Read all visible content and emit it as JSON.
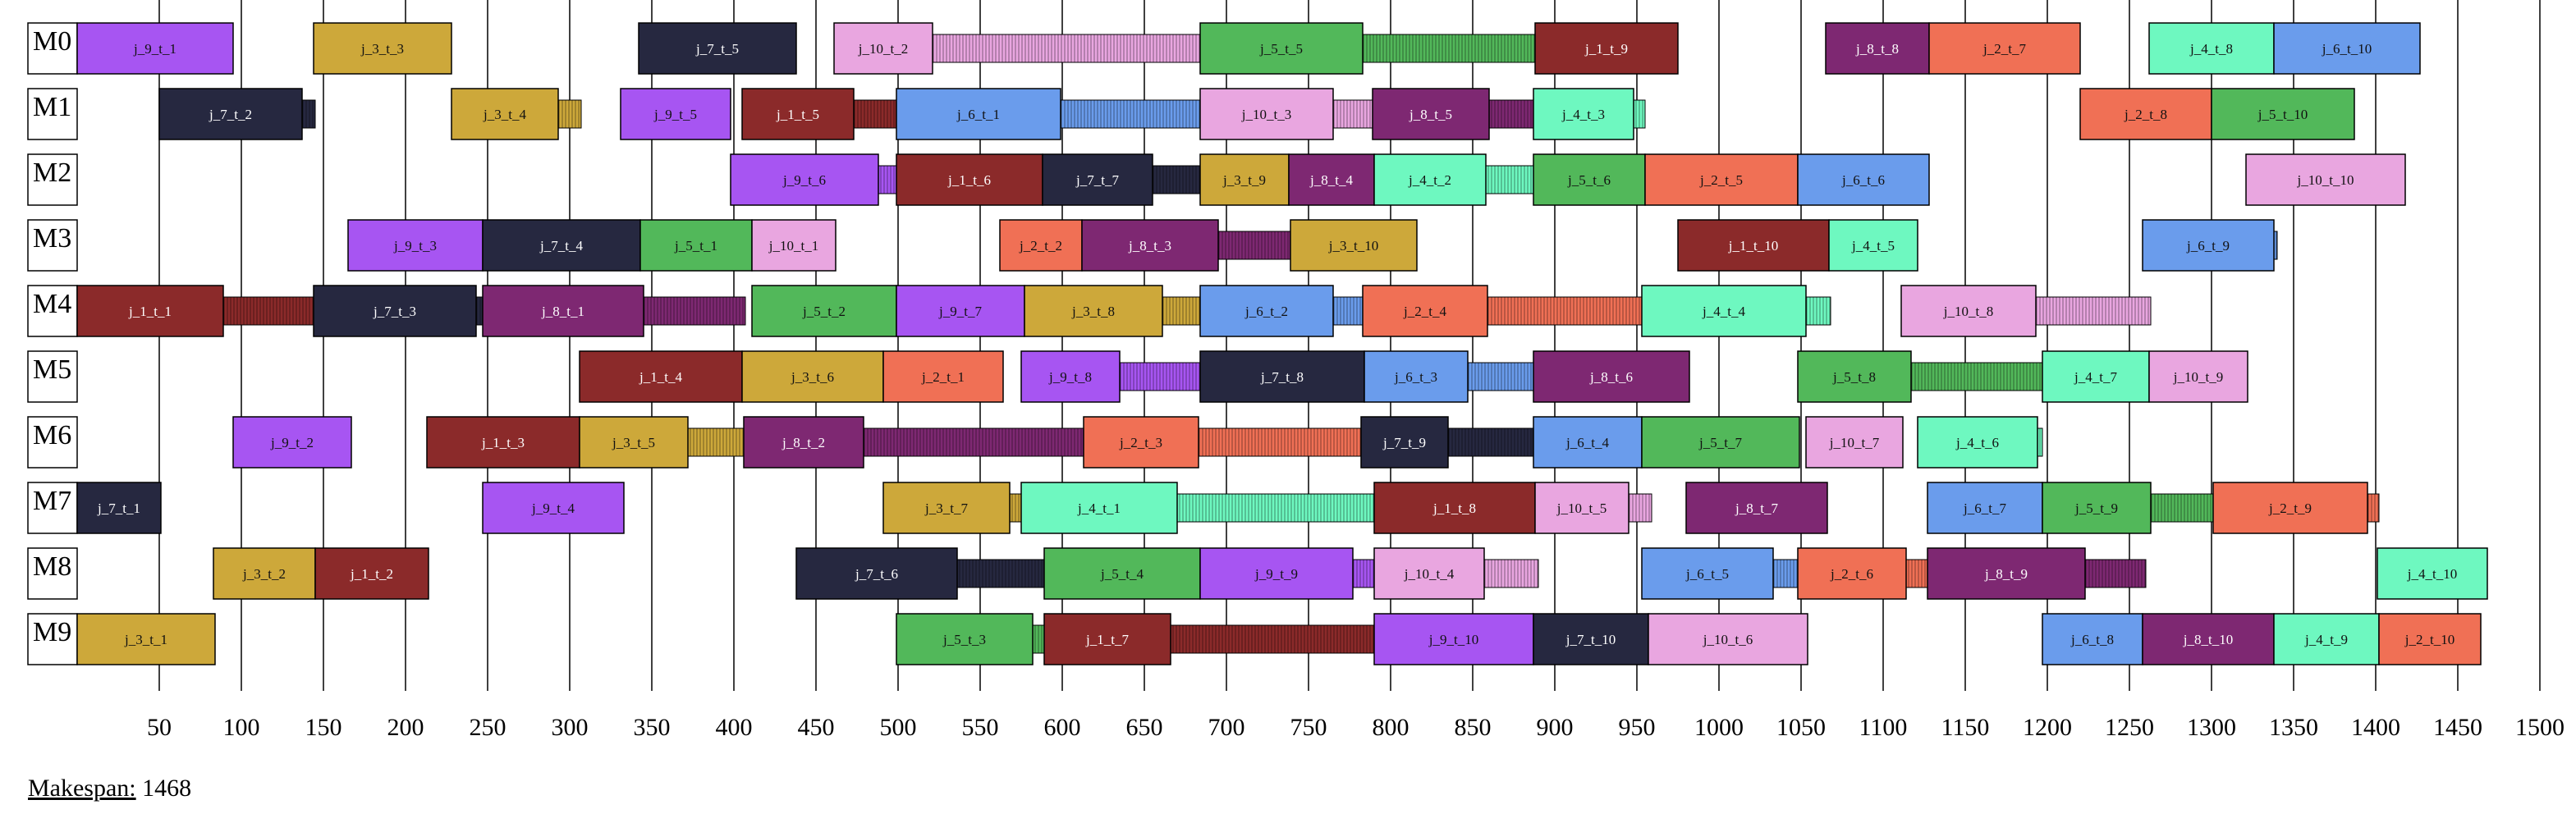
{
  "chart_data": {
    "type": "gantt",
    "title": "",
    "xlabel": "",
    "ylabel": "",
    "xlim": [
      0,
      1500
    ],
    "xticks": [
      50,
      100,
      150,
      200,
      250,
      300,
      350,
      400,
      450,
      500,
      550,
      600,
      650,
      700,
      750,
      800,
      850,
      900,
      950,
      1000,
      1050,
      1100,
      1150,
      1200,
      1250,
      1300,
      1350,
      1400,
      1450,
      1500
    ],
    "grid": true,
    "job_colors": {
      "j_1": "#8b2a2a",
      "j_2": "#f07055",
      "j_3": "#cda83a",
      "j_4": "#6ef8c0",
      "j_5": "#52b85a",
      "j_6": "#6a9cec",
      "j_7": "#262840",
      "j_8": "#7e2872",
      "j_9": "#a755f2",
      "j_10": "#e9a6e0"
    },
    "machines": [
      {
        "name": "M0",
        "ops": [
          {
            "label": "j_9_t_1",
            "start": 0,
            "end": 95
          },
          {
            "label": "j_3_t_3",
            "start": 144,
            "end": 228
          },
          {
            "label": "j_7_t_5",
            "start": 342,
            "end": 438
          },
          {
            "label": "j_10_t_2",
            "start": 461,
            "end": 521,
            "wait_end": 684
          },
          {
            "label": "j_5_t_5",
            "start": 684,
            "end": 783,
            "wait_end": 888
          },
          {
            "label": "j_1_t_9",
            "start": 888,
            "end": 975
          },
          {
            "label": "j_8_t_8",
            "start": 1065,
            "end": 1128
          },
          {
            "label": "j_2_t_7",
            "start": 1128,
            "end": 1220
          },
          {
            "label": "j_4_t_8",
            "start": 1262,
            "end": 1338
          },
          {
            "label": "j_6_t_10",
            "start": 1338,
            "end": 1427
          }
        ]
      },
      {
        "name": "M1",
        "ops": [
          {
            "label": "j_7_t_2",
            "start": 50,
            "end": 137,
            "wait_end": 145
          },
          {
            "label": "j_3_t_4",
            "start": 228,
            "end": 293,
            "wait_end": 307
          },
          {
            "label": "j_9_t_5",
            "start": 331,
            "end": 398
          },
          {
            "label": "j_1_t_5",
            "start": 405,
            "end": 473,
            "wait_end": 499
          },
          {
            "label": "j_6_t_1",
            "start": 499,
            "end": 599,
            "wait_end": 684
          },
          {
            "label": "j_10_t_3",
            "start": 684,
            "end": 765,
            "wait_end": 789
          },
          {
            "label": "j_8_t_5",
            "start": 789,
            "end": 860,
            "wait_end": 887
          },
          {
            "label": "j_4_t_3",
            "start": 887,
            "end": 948,
            "wait_end": 955
          },
          {
            "label": "j_2_t_8",
            "start": 1220,
            "end": 1300
          },
          {
            "label": "j_5_t_10",
            "start": 1300,
            "end": 1387
          }
        ]
      },
      {
        "name": "M2",
        "ops": [
          {
            "label": "j_9_t_6",
            "start": 398,
            "end": 488,
            "wait_end": 499
          },
          {
            "label": "j_1_t_6",
            "start": 499,
            "end": 588
          },
          {
            "label": "j_7_t_7",
            "start": 588,
            "end": 655,
            "wait_end": 684
          },
          {
            "label": "j_3_t_9",
            "start": 684,
            "end": 738
          },
          {
            "label": "j_8_t_4",
            "start": 738,
            "end": 790
          },
          {
            "label": "j_4_t_2",
            "start": 790,
            "end": 858,
            "wait_end": 887
          },
          {
            "label": "j_5_t_6",
            "start": 887,
            "end": 955
          },
          {
            "label": "j_2_t_5",
            "start": 955,
            "end": 1048
          },
          {
            "label": "j_6_t_6",
            "start": 1048,
            "end": 1128
          },
          {
            "label": "j_10_t_10",
            "start": 1321,
            "end": 1418
          }
        ]
      },
      {
        "name": "M3",
        "ops": [
          {
            "label": "j_9_t_3",
            "start": 165,
            "end": 247
          },
          {
            "label": "j_7_t_4",
            "start": 247,
            "end": 343
          },
          {
            "label": "j_5_t_1",
            "start": 343,
            "end": 411
          },
          {
            "label": "j_10_t_1",
            "start": 411,
            "end": 462
          },
          {
            "label": "j_2_t_2",
            "start": 562,
            "end": 612
          },
          {
            "label": "j_8_t_3",
            "start": 612,
            "end": 695,
            "wait_end": 739
          },
          {
            "label": "j_3_t_10",
            "start": 739,
            "end": 816
          },
          {
            "label": "j_1_t_10",
            "start": 975,
            "end": 1067
          },
          {
            "label": "j_4_t_5",
            "start": 1067,
            "end": 1121
          },
          {
            "label": "j_6_t_9",
            "start": 1258,
            "end": 1338,
            "wait_end": 1340
          }
        ]
      },
      {
        "name": "M4",
        "ops": [
          {
            "label": "j_1_t_1",
            "start": 0,
            "end": 89,
            "wait_end": 144
          },
          {
            "label": "j_7_t_3",
            "start": 144,
            "end": 243,
            "wait_end": 247
          },
          {
            "label": "j_8_t_1",
            "start": 247,
            "end": 345,
            "wait_end": 407
          },
          {
            "label": "j_5_t_2",
            "start": 411,
            "end": 499
          },
          {
            "label": "j_9_t_7",
            "start": 499,
            "end": 577
          },
          {
            "label": "j_3_t_8",
            "start": 577,
            "end": 661,
            "wait_end": 684
          },
          {
            "label": "j_6_t_2",
            "start": 684,
            "end": 765,
            "wait_end": 783
          },
          {
            "label": "j_2_t_4",
            "start": 783,
            "end": 859,
            "wait_end": 953
          },
          {
            "label": "j_4_t_4",
            "start": 953,
            "end": 1053,
            "wait_end": 1068
          },
          {
            "label": "j_10_t_8",
            "start": 1111,
            "end": 1193,
            "wait_end": 1263
          }
        ]
      },
      {
        "name": "M5",
        "ops": [
          {
            "label": "j_1_t_4",
            "start": 306,
            "end": 405
          },
          {
            "label": "j_3_t_6",
            "start": 405,
            "end": 491
          },
          {
            "label": "j_2_t_1",
            "start": 491,
            "end": 564
          },
          {
            "label": "j_9_t_8",
            "start": 575,
            "end": 635,
            "wait_end": 684
          },
          {
            "label": "j_7_t_8",
            "start": 684,
            "end": 784
          },
          {
            "label": "j_6_t_3",
            "start": 784,
            "end": 847,
            "wait_end": 887
          },
          {
            "label": "j_8_t_6",
            "start": 887,
            "end": 982
          },
          {
            "label": "j_5_t_8",
            "start": 1048,
            "end": 1117,
            "wait_end": 1197
          },
          {
            "label": "j_4_t_7",
            "start": 1197,
            "end": 1262
          },
          {
            "label": "j_10_t_9",
            "start": 1262,
            "end": 1322
          }
        ]
      },
      {
        "name": "M6",
        "ops": [
          {
            "label": "j_9_t_2",
            "start": 95,
            "end": 167
          },
          {
            "label": "j_1_t_3",
            "start": 213,
            "end": 306
          },
          {
            "label": "j_3_t_5",
            "start": 306,
            "end": 372,
            "wait_end": 406
          },
          {
            "label": "j_8_t_2",
            "start": 406,
            "end": 479,
            "wait_end": 613
          },
          {
            "label": "j_2_t_3",
            "start": 613,
            "end": 683,
            "wait_end": 782
          },
          {
            "label": "j_7_t_9",
            "start": 782,
            "end": 835,
            "wait_end": 887
          },
          {
            "label": "j_6_t_4",
            "start": 887,
            "end": 953
          },
          {
            "label": "j_5_t_7",
            "start": 953,
            "end": 1049
          },
          {
            "label": "j_10_t_7",
            "start": 1053,
            "end": 1112
          },
          {
            "label": "j_4_t_6",
            "start": 1121,
            "end": 1194,
            "wait_end": 1197
          }
        ]
      },
      {
        "name": "M7",
        "ops": [
          {
            "label": "j_7_t_1",
            "start": 0,
            "end": 51
          },
          {
            "label": "j_9_t_4",
            "start": 247,
            "end": 333
          },
          {
            "label": "j_3_t_7",
            "start": 491,
            "end": 568,
            "wait_end": 575
          },
          {
            "label": "j_4_t_1",
            "start": 575,
            "end": 670,
            "wait_end": 790
          },
          {
            "label": "j_1_t_8",
            "start": 790,
            "end": 888
          },
          {
            "label": "j_10_t_5",
            "start": 888,
            "end": 945,
            "wait_end": 959
          },
          {
            "label": "j_8_t_7",
            "start": 980,
            "end": 1066
          },
          {
            "label": "j_6_t_7",
            "start": 1127,
            "end": 1197
          },
          {
            "label": "j_5_t_9",
            "start": 1197,
            "end": 1263,
            "wait_end": 1301
          },
          {
            "label": "j_2_t_9",
            "start": 1301,
            "end": 1395,
            "wait_end": 1402
          }
        ]
      },
      {
        "name": "M8",
        "ops": [
          {
            "label": "j_3_t_2",
            "start": 83,
            "end": 145
          },
          {
            "label": "j_1_t_2",
            "start": 145,
            "end": 214
          },
          {
            "label": "j_7_t_6",
            "start": 438,
            "end": 536,
            "wait_end": 589
          },
          {
            "label": "j_5_t_4",
            "start": 589,
            "end": 684
          },
          {
            "label": "j_9_t_9",
            "start": 684,
            "end": 777,
            "wait_end": 790
          },
          {
            "label": "j_10_t_4",
            "start": 790,
            "end": 857,
            "wait_end": 890
          },
          {
            "label": "j_6_t_5",
            "start": 953,
            "end": 1033,
            "wait_end": 1048
          },
          {
            "label": "j_2_t_6",
            "start": 1048,
            "end": 1114,
            "wait_end": 1127
          },
          {
            "label": "j_8_t_9",
            "start": 1127,
            "end": 1223,
            "wait_end": 1260
          },
          {
            "label": "j_4_t_10",
            "start": 1401,
            "end": 1468
          }
        ]
      },
      {
        "name": "M9",
        "ops": [
          {
            "label": "j_3_t_1",
            "start": 0,
            "end": 84
          },
          {
            "label": "j_5_t_3",
            "start": 499,
            "end": 582,
            "wait_end": 589
          },
          {
            "label": "j_1_t_7",
            "start": 589,
            "end": 666,
            "wait_end": 790
          },
          {
            "label": "j_9_t_10",
            "start": 790,
            "end": 887
          },
          {
            "label": "j_7_t_10",
            "start": 887,
            "end": 957
          },
          {
            "label": "j_10_t_6",
            "start": 957,
            "end": 1054
          },
          {
            "label": "j_6_t_8",
            "start": 1197,
            "end": 1258
          },
          {
            "label": "j_8_t_10",
            "start": 1258,
            "end": 1338
          },
          {
            "label": "j_4_t_9",
            "start": 1338,
            "end": 1402
          },
          {
            "label": "j_2_t_10",
            "start": 1402,
            "end": 1464
          }
        ]
      }
    ]
  },
  "makespan": {
    "label": "Makespan:",
    "value": "1468"
  }
}
